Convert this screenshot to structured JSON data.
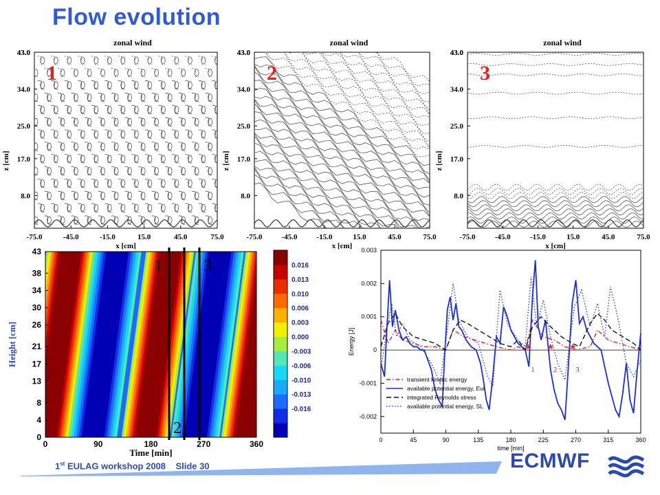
{
  "slide": {
    "title": "Flow evolution",
    "footer": {
      "superscript": "st",
      "workshop_rest": " EULAG workshop 2008",
      "slide_label": "Slide 30",
      "ordinal_number": "1"
    },
    "logo_text": "ECMWF"
  },
  "colors": {
    "title": "#2f5bd8",
    "footer_band": "#8fb4ee",
    "logo": "#2a49b4"
  },
  "chart_data": [
    {
      "type": "contour",
      "title": "zonal wind",
      "panel_label": "1",
      "xlabel": "x [cm]",
      "ylabel": "z [cm]",
      "xticks": [
        "-75.0",
        "-45.0",
        "-15.0",
        "15.0",
        "45.0",
        "75.0"
      ],
      "yticks": [
        "8.0",
        "17.0",
        "25.0",
        "34.0",
        "43.0"
      ],
      "xlim": [
        -75,
        75
      ],
      "ylim": [
        0,
        43
      ]
    },
    {
      "type": "contour",
      "title": "zonal wind",
      "panel_label": "2",
      "xlabel": "x [cm]",
      "ylabel": "z [cm]",
      "xticks": [
        "-75.0",
        "-45.0",
        "-15.0",
        "15.0",
        "45.0",
        "75.0"
      ],
      "yticks": [
        "8.0",
        "17.0",
        "25.0",
        "34.0",
        "43.0"
      ],
      "xlim": [
        -75,
        75
      ],
      "ylim": [
        0,
        43
      ]
    },
    {
      "type": "contour",
      "title": "zonal wind",
      "panel_label": "3",
      "xlabel": "x [cm]",
      "ylabel": "z [cm]",
      "xticks": [
        "-75.0",
        "-45.0",
        "-15.0",
        "15.0",
        "45.0",
        "75.0"
      ],
      "yticks": [
        "8.0",
        "17.0",
        "25.0",
        "34.0",
        "43.0"
      ],
      "xlim": [
        -75,
        75
      ],
      "ylim": [
        0,
        43
      ]
    },
    {
      "type": "heatmap",
      "xlabel": "Time [min]",
      "ylabel": "Height [cm]",
      "xticks": [
        "0",
        "90",
        "180",
        "270",
        "360"
      ],
      "yticks": [
        "0",
        "4",
        "8",
        "13",
        "17",
        "21",
        "26",
        "30",
        "34",
        "38",
        "43"
      ],
      "xlim": [
        0,
        360
      ],
      "ylim": [
        0,
        43
      ],
      "colorbar_ticks": [
        "0.016",
        "0.013",
        "0.010",
        "0.006",
        "0.003",
        "0.000",
        "-0.003",
        "-0.006",
        "-0.010",
        "-0.013",
        "-0.016"
      ],
      "colorbar_colors": [
        "#8b0000",
        "#c80000",
        "#ee2a00",
        "#ff6a00",
        "#ffb000",
        "#f2f000",
        "#a8ec3c",
        "#54e6b4",
        "#16d8f4",
        "#1aa8ff",
        "#1c6cff",
        "#0f2ee8",
        "#0000b4"
      ],
      "markers": [
        {
          "label": "1",
          "x": 204
        },
        {
          "label": "2",
          "x": 235
        },
        {
          "label": "3",
          "x": 266
        }
      ]
    },
    {
      "type": "line",
      "xlabel": "time [min]",
      "ylabel": "Energy [J]",
      "xticks": [
        0,
        45,
        90,
        135,
        180,
        225,
        270,
        315,
        360
      ],
      "yticks": [
        "-0.002",
        "-0.001",
        "0",
        "0.001",
        "0.002",
        "0.003"
      ],
      "xlim": [
        0,
        360
      ],
      "ylim": [
        -0.0025,
        0.003
      ],
      "legend_placement": "bottom-left",
      "series": [
        {
          "name": "transient kinetic energy",
          "color": "#e02020",
          "dash": "dashdot",
          "x": [
            0,
            10,
            20,
            30,
            45,
            60,
            75,
            90,
            100,
            115,
            130,
            145,
            160,
            180,
            190,
            200,
            210,
            225,
            240,
            255,
            270,
            290,
            300,
            315,
            330,
            345,
            360
          ],
          "y": [
            0.0009,
            0.0002,
            0.0006,
            0.0003,
            0.0002,
            0.0001,
            0.0001,
            0.0,
            0.0006,
            0.0004,
            0.0003,
            0.0002,
            0.0001,
            0.0,
            0.0001,
            0.0,
            0.0009,
            0.0004,
            0.0003,
            0.0001,
            0.0,
            0.0001,
            0.0006,
            0.0003,
            0.0002,
            0.0001,
            0.0
          ]
        },
        {
          "name": "available potential energy, Eul",
          "color": "#1a2ee0",
          "dash": "solid",
          "x": [
            0,
            5,
            8,
            12,
            16,
            20,
            25,
            30,
            35,
            40,
            45,
            50,
            55,
            60,
            65,
            70,
            75,
            80,
            85,
            88,
            92,
            96,
            100,
            104,
            108,
            112,
            118,
            125,
            132,
            138,
            142,
            146,
            150,
            155,
            160,
            165,
            170,
            175,
            180,
            185,
            190,
            195,
            200,
            205,
            210,
            214,
            218,
            222,
            228,
            235,
            240,
            245,
            250,
            255,
            260,
            265,
            270,
            275,
            280,
            285,
            290,
            295,
            300,
            305,
            310,
            315,
            320,
            325,
            330,
            335,
            340,
            345,
            350,
            355,
            360
          ],
          "y": [
            -0.0004,
            -0.0008,
            0.0005,
            0.0021,
            0.0007,
            0.0012,
            0.0006,
            0.0003,
            0.0004,
            0.0002,
            0.0001,
            0.0001,
            0.0,
            0.0,
            -0.0003,
            -0.0006,
            -0.0012,
            -0.0015,
            -0.0017,
            -0.0003,
            0.0012,
            0.0016,
            0.0009,
            0.0014,
            0.0007,
            0.0006,
            0.0003,
            0.0001,
            0.0,
            -0.0004,
            -0.0009,
            -0.0015,
            -0.0018,
            -0.0008,
            0.0004,
            0.0002,
            0.0013,
            0.001,
            0.0006,
            0.0004,
            0.0002,
            0.0001,
            0.0,
            -0.0005,
            0.0016,
            0.0027,
            0.0007,
            0.0003,
            0.0009,
            -0.0006,
            -0.0012,
            -0.0016,
            -0.0018,
            -0.0021,
            -0.0004,
            0.0014,
            0.0021,
            0.0008,
            0.001,
            0.0006,
            0.0004,
            0.0002,
            0.0001,
            0.0,
            -0.0005,
            -0.001,
            -0.0014,
            -0.0018,
            -0.002,
            -0.0013,
            -0.0004,
            -0.0015,
            -0.0019,
            -0.0006,
            0.0005
          ]
        },
        {
          "name": "integrated Reynolds stress",
          "color": "#111111",
          "dash": "dash",
          "x": [
            0,
            10,
            20,
            30,
            45,
            60,
            75,
            90,
            100,
            110,
            120,
            135,
            150,
            165,
            180,
            190,
            200,
            210,
            222,
            235,
            250,
            265,
            275,
            290,
            300,
            310,
            320,
            335,
            350,
            360
          ],
          "y": [
            0.0001,
            0.0008,
            0.0011,
            0.0007,
            0.0004,
            0.0003,
            0.0002,
            0.0,
            0.0006,
            0.0009,
            0.0008,
            0.0006,
            0.0004,
            0.0002,
            0.0001,
            0.0003,
            0.0,
            0.0007,
            0.001,
            0.0007,
            0.0004,
            0.0002,
            0.0001,
            0.0008,
            0.0011,
            0.0009,
            0.0006,
            0.0004,
            0.0002,
            0.0
          ]
        },
        {
          "name": "available potential energy, SL",
          "color": "#2e3ee8",
          "dash": "dot",
          "x": [
            0,
            8,
            15,
            22,
            30,
            40,
            55,
            70,
            82,
            92,
            100,
            108,
            120,
            135,
            148,
            155,
            165,
            175,
            190,
            200,
            208,
            216,
            225,
            235,
            245,
            255,
            268,
            278,
            290,
            300,
            310,
            318,
            328,
            340,
            350,
            360
          ],
          "y": [
            -0.0006,
            0.0006,
            0.0014,
            0.0004,
            0.0008,
            0.0003,
            0.0001,
            -0.0004,
            -0.001,
            0.0006,
            0.002,
            0.0009,
            0.0004,
            0.0002,
            -0.0008,
            -0.0011,
            0.0018,
            0.0008,
            0.0003,
            0.0001,
            0.0022,
            0.0007,
            0.0015,
            0.0004,
            -0.0004,
            -0.0009,
            0.0013,
            0.0018,
            0.0007,
            0.0014,
            0.0004,
            0.0019,
            0.001,
            -0.0004,
            -0.0008,
            -0.0003
          ]
        }
      ],
      "annotations": [
        {
          "label": "1",
          "x": 204,
          "y": 0.0
        },
        {
          "label": "2",
          "x": 235,
          "y": 0.0
        },
        {
          "label": "3",
          "x": 266,
          "y": 0.0
        }
      ]
    }
  ]
}
